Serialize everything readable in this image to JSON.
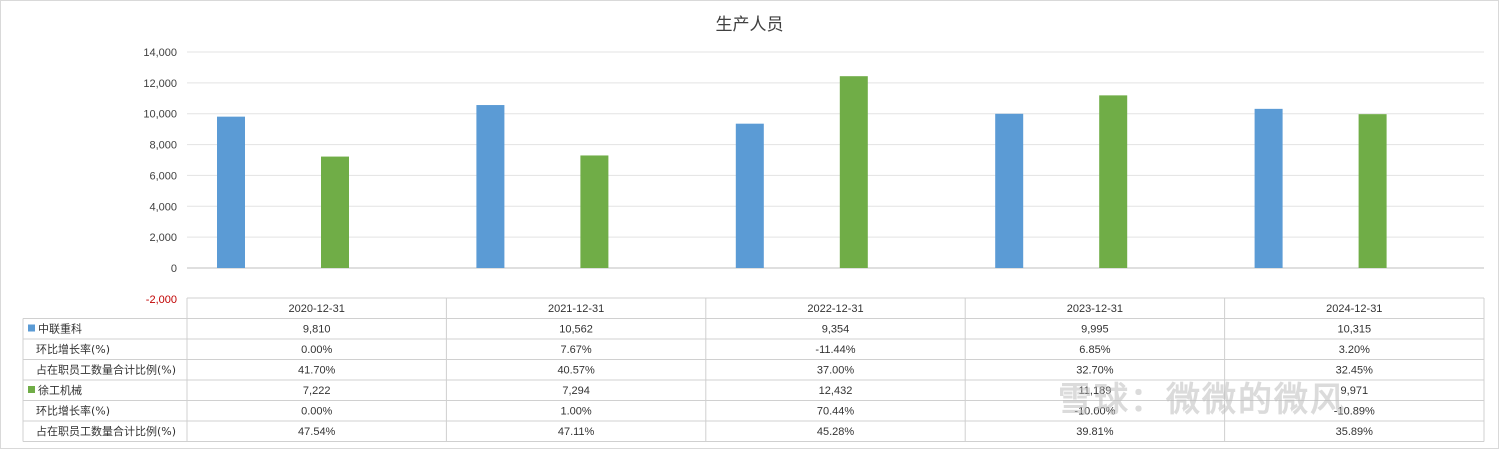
{
  "chart_data": {
    "type": "bar",
    "title": "生产人员",
    "categories": [
      "2020-12-31",
      "2021-12-31",
      "2022-12-31",
      "2023-12-31",
      "2024-12-31"
    ],
    "ylim": [
      -2000,
      14000
    ],
    "yticks": [
      "-2,000",
      "0",
      "2,000",
      "4,000",
      "6,000",
      "8,000",
      "10,000",
      "12,000",
      "14,000"
    ],
    "grid": true,
    "series": [
      {
        "name": "中联重科",
        "color": "#5b9bd5",
        "values": [
          9810,
          10562,
          9354,
          9995,
          10315
        ],
        "labels": [
          "9,810",
          "10,562",
          "9,354",
          "9,995",
          "10,315"
        ],
        "rows": [
          {
            "label": "环比增长率(%)",
            "values": [
              "0.00%",
              "7.67%",
              "-11.44%",
              "6.85%",
              "3.20%"
            ]
          },
          {
            "label": "占在职员工数量合计比例(%)",
            "values": [
              "41.70%",
              "40.57%",
              "37.00%",
              "32.70%",
              "32.45%"
            ]
          }
        ]
      },
      {
        "name": "徐工机械",
        "color": "#70ad47",
        "values": [
          7222,
          7294,
          12432,
          11189,
          9971
        ],
        "labels": [
          "7,222",
          "7,294",
          "12,432",
          "11,189",
          "9,971"
        ],
        "rows": [
          {
            "label": "环比增长率(%)",
            "values": [
              "0.00%",
              "1.00%",
              "70.44%",
              "-10.00%",
              "-10.89%"
            ]
          },
          {
            "label": "占在职员工数量合计比例(%)",
            "values": [
              "47.54%",
              "47.11%",
              "45.28%",
              "39.81%",
              "35.89%"
            ]
          }
        ]
      }
    ]
  },
  "watermark": "雪球：微微的微风"
}
